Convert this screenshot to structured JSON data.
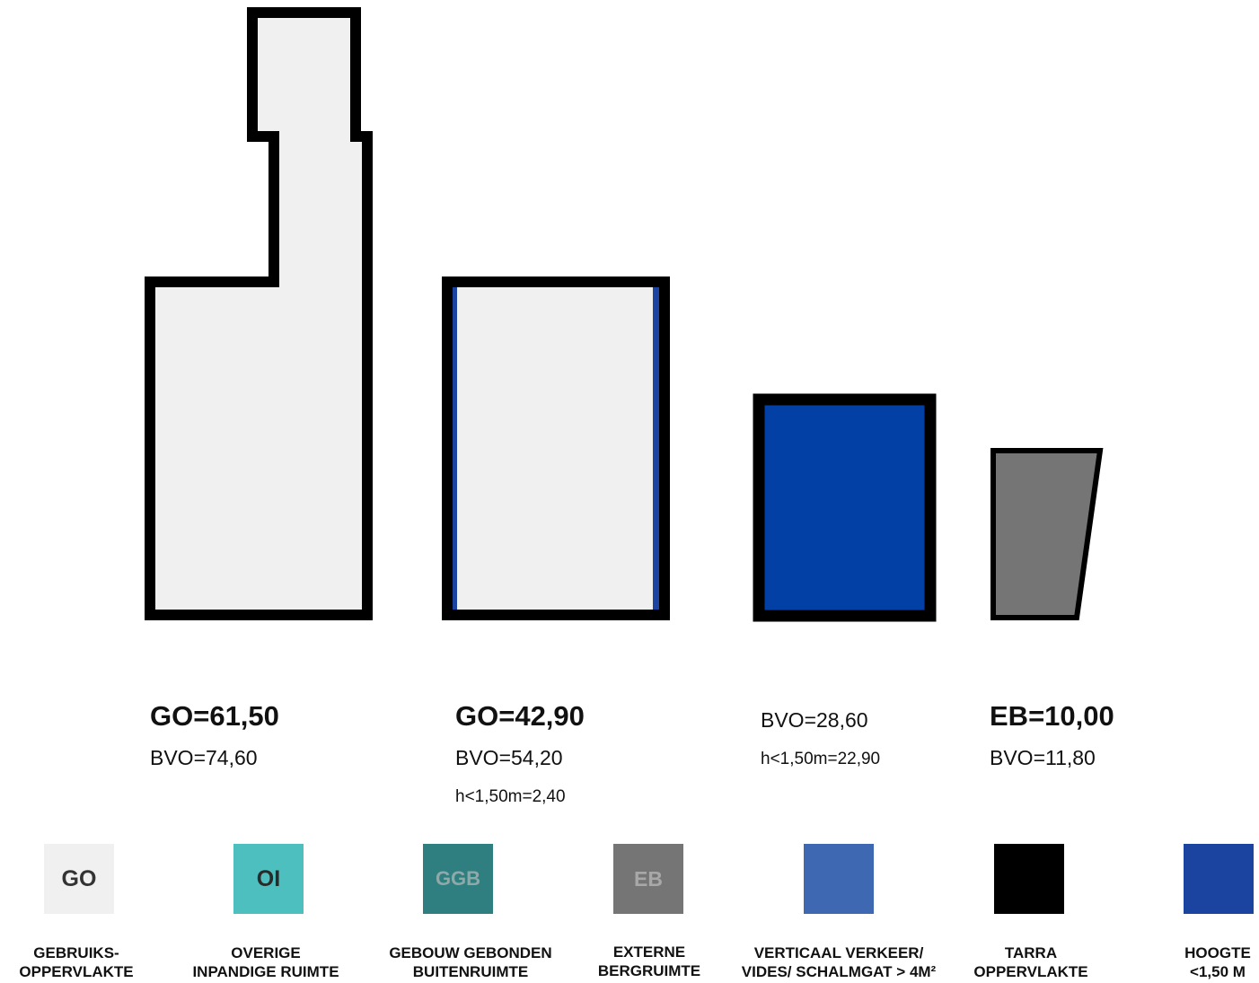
{
  "colors": {
    "go": "#f0f0f0",
    "oi": "#4cbfbe",
    "ggb": "#2f7e80",
    "eb": "#757575",
    "verkeer": "#3f68b3",
    "tarra": "#000000",
    "hoogte": "#1a44a0",
    "outline": "#000000"
  },
  "spaces": [
    {
      "main": "GO=61,50",
      "bvo": "BVO=74,60",
      "extra": ""
    },
    {
      "main": "GO=42,90",
      "bvo": "BVO=54,20",
      "extra": "h<1,50m=2,40"
    },
    {
      "main": "",
      "bvo": "BVO=28,60",
      "extra": "h<1,50m=22,90"
    },
    {
      "main": "EB=10,00",
      "bvo": "BVO=11,80",
      "extra": ""
    }
  ],
  "legend": [
    {
      "abbr": "GO",
      "line1": "GEBRUIKS-",
      "line2": "OPPERVLAKTE",
      "icon": "go-swatch"
    },
    {
      "abbr": "OI",
      "line1": "OVERIGE",
      "line2": "INPANDIGE RUIMTE",
      "icon": "oi-swatch"
    },
    {
      "abbr": "GGB",
      "line1": "GEBOUW GEBONDEN",
      "line2": "BUITENRUIMTE",
      "icon": "ggb-swatch"
    },
    {
      "abbr": "EB",
      "line1": "EXTERNE",
      "line2": "BERGRUIMTE",
      "icon": "eb-swatch"
    },
    {
      "abbr": "",
      "line1": "VERTICAAL VERKEER/",
      "line2": "VIDES/ SCHALMGAT > 4M²",
      "icon": "verkeer-swatch"
    },
    {
      "abbr": "",
      "line1": "TARRA",
      "line2": "OPPERVLAKTE",
      "icon": "tarra-swatch"
    },
    {
      "abbr": "",
      "line1": "HOOGTE",
      "line2": "<1,50 M",
      "icon": "hoogte-swatch"
    }
  ]
}
